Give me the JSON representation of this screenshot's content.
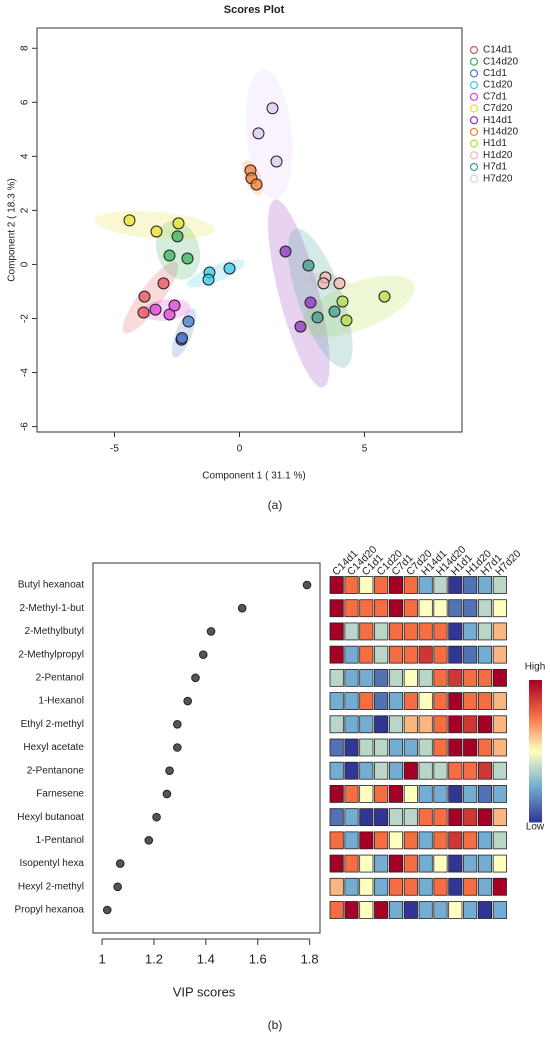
{
  "chart_data": [
    {
      "type": "scatter",
      "title": "Scores Plot",
      "xlabel": "Component 1 ( 31.1 %)",
      "ylabel": "Component 2 ( 18.3 %)",
      "xlim": [
        -8.1,
        8.9
      ],
      "xticks": [
        -5,
        0,
        5
      ],
      "ylim": [
        -6.2,
        8.75
      ],
      "yticks": [
        -6,
        -4,
        -2,
        0,
        2,
        4,
        6,
        8
      ],
      "series": [
        {
          "name": "C14d1",
          "color": "#e8505b",
          "x": [
            -3.8,
            -3.04,
            -3.84
          ],
          "values": [
            -1.19,
            -0.7,
            -1.78
          ]
        },
        {
          "name": "C14d20",
          "color": "#3cb05a",
          "x": [
            -2.48,
            -2.08,
            -2.8
          ],
          "values": [
            1.04,
            0.22,
            0.33
          ]
        },
        {
          "name": "C1d1",
          "color": "#4a79c8",
          "x": [
            -2.04,
            -2.32,
            -2.3
          ],
          "values": [
            -2.11,
            -2.78,
            -2.72
          ]
        },
        {
          "name": "C1d20",
          "color": "#3cc8e8",
          "x": [
            -1.2,
            -1.24,
            -0.4
          ],
          "values": [
            -0.3,
            -0.56,
            -0.15
          ]
        },
        {
          "name": "C7d1",
          "color": "#e040d8",
          "x": [
            -3.36,
            -2.8,
            -2.6
          ],
          "values": [
            -1.67,
            -1.85,
            -1.52
          ]
        },
        {
          "name": "C7d20",
          "color": "#e8e030",
          "x": [
            -4.4,
            -3.32,
            -2.44
          ],
          "values": [
            1.63,
            1.22,
            1.52
          ]
        },
        {
          "name": "H14d1",
          "color": "#9030c0",
          "x": [
            1.84,
            2.84,
            2.44
          ],
          "values": [
            0.48,
            -1.41,
            -2.3
          ]
        },
        {
          "name": "H14d20",
          "color": "#f08030",
          "x": [
            0.44,
            0.48,
            0.68
          ],
          "values": [
            3.48,
            3.19,
            2.96
          ]
        },
        {
          "name": "H1d1",
          "color": "#b0e040",
          "x": [
            4.12,
            4.28,
            5.8
          ],
          "values": [
            -1.37,
            -2.07,
            -1.19
          ]
        },
        {
          "name": "H1d20",
          "color": "#f0b8b0",
          "x": [
            3.44,
            3.36,
            4.0
          ],
          "values": [
            -0.48,
            -0.7,
            -0.7
          ]
        },
        {
          "name": "H7d1",
          "color": "#40a090",
          "x": [
            2.76,
            3.12,
            3.8
          ],
          "values": [
            -0.04,
            -1.96,
            -1.74
          ]
        },
        {
          "name": "H7d20",
          "color": "#e0c8f0",
          "x": [
            1.32,
            0.76,
            1.48
          ],
          "values": [
            5.78,
            4.85,
            3.81
          ]
        }
      ]
    },
    {
      "type": "dotplot",
      "xlabel": "VIP scores",
      "xlim": [
        0.965,
        1.84
      ],
      "xticks": [
        1.0,
        1.2,
        1.4,
        1.6,
        1.8
      ],
      "color": "#555555",
      "categories": [
        "Butyl hexanoat",
        "2-Methyl-1-but",
        "2-Methylbutyl",
        "2-Methylpropyl",
        "2-Pentanol",
        "1-Hexanol",
        "Ethyl 2-methyl",
        "Hexyl acetate",
        "2-Pentanone",
        "Farnesene",
        "Hexyl butanoat",
        "1-Pentanol",
        "Isopentyl hexa",
        "Hexyl 2-methyl",
        "Propyl hexanoa"
      ],
      "values": [
        1.79,
        1.54,
        1.42,
        1.39,
        1.36,
        1.33,
        1.29,
        1.29,
        1.26,
        1.25,
        1.21,
        1.18,
        1.07,
        1.06,
        1.02
      ],
      "heatmap": {
        "columns": [
          "C14d1",
          "C14d20",
          "C1d1",
          "C1d20",
          "C7d1",
          "C7d20",
          "H14d1",
          "H14d20",
          "H1d1",
          "H1d20",
          "H7d1",
          "H7d20"
        ],
        "zlim": [
          -2,
          2
        ],
        "colorscale": [
          "#313695",
          "#74add1",
          "#ffffbf",
          "#f46d43",
          "#a50026"
        ],
        "high_label": "High",
        "low_label": "Low",
        "matrix": [
          [
            2,
            1,
            0,
            1,
            2,
            1,
            -1,
            -0.5,
            -2,
            -1.5,
            -1,
            -0.5
          ],
          [
            2,
            1,
            1,
            1,
            2,
            1,
            0,
            0,
            -1.5,
            -1.5,
            -0.5,
            0
          ],
          [
            2,
            -0.5,
            1,
            -0.5,
            1,
            1,
            1,
            1,
            -2,
            -1,
            -0.5,
            0.5
          ],
          [
            2,
            -1,
            1,
            -0.5,
            1,
            1,
            1.5,
            1,
            -2,
            -1.5,
            -1,
            0.5
          ],
          [
            -0.5,
            -1,
            -1,
            -1.5,
            -0.5,
            0,
            -0.5,
            1,
            1.5,
            1,
            1,
            2
          ],
          [
            -1,
            -1,
            1,
            -1.5,
            -1,
            1,
            0,
            1,
            2,
            1,
            1,
            0.5
          ],
          [
            -0.5,
            -1,
            -1,
            -2,
            -0.5,
            0.5,
            0.5,
            1,
            2,
            1.5,
            2,
            0.5
          ],
          [
            -1.5,
            -2,
            -0.5,
            -0.5,
            -1,
            -1,
            -0.5,
            1,
            2,
            2,
            1,
            0.5
          ],
          [
            -1,
            -2,
            -1,
            -0.5,
            -1,
            2,
            -0.5,
            -0.5,
            1,
            1,
            1.5,
            -0.5
          ],
          [
            2,
            1,
            0,
            1,
            2,
            0,
            -1,
            -1,
            -2,
            -1,
            -1.5,
            -1
          ],
          [
            -1.5,
            -1,
            -2,
            -2,
            -0.5,
            -0.5,
            1,
            1,
            2,
            1.5,
            2,
            0.5
          ],
          [
            1,
            -1,
            2,
            1,
            0,
            1,
            -1,
            1,
            1.5,
            1,
            -1,
            -0.5
          ],
          [
            2,
            1,
            0,
            -1,
            2,
            1,
            -1,
            0,
            -2,
            -1,
            -1,
            0
          ],
          [
            0.5,
            -1,
            0,
            -1,
            1,
            1,
            -1,
            1,
            -2,
            1,
            -1,
            2
          ],
          [
            1,
            2,
            0,
            2,
            -1,
            -2,
            -1,
            -1,
            0,
            -1,
            -2,
            -1
          ]
        ]
      }
    }
  ],
  "captions": [
    "(a)",
    "(b)"
  ]
}
